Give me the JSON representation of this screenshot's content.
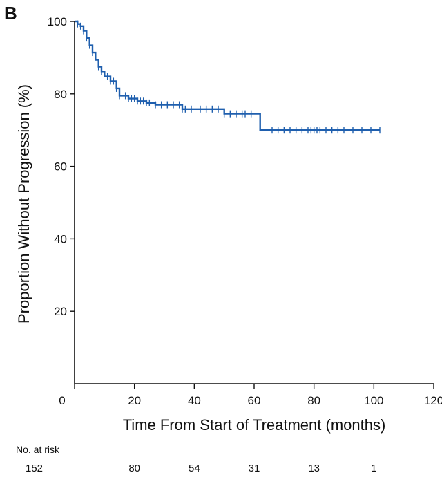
{
  "panel_label": "B",
  "colors": {
    "curve": "#1f5fae",
    "axis": "#111111"
  },
  "chart_data": {
    "type": "line",
    "subtype": "kaplan-meier",
    "xlabel": "Time From Start of Treatment (months)",
    "ylabel": "Proportion Without Progression (%)",
    "xlim": [
      0,
      120
    ],
    "ylim": [
      0,
      100
    ],
    "xticks": [
      0,
      20,
      40,
      60,
      80,
      100,
      120
    ],
    "yticks": [
      20,
      40,
      60,
      80,
      100
    ],
    "grid": false,
    "series": [
      {
        "steps": [
          [
            0,
            100
          ],
          [
            1,
            99.3
          ],
          [
            2,
            98.7
          ],
          [
            3,
            97.4
          ],
          [
            4,
            95.4
          ],
          [
            5,
            93.4
          ],
          [
            6,
            91.4
          ],
          [
            7,
            89.4
          ],
          [
            8,
            87.5
          ],
          [
            9,
            86.2
          ],
          [
            10,
            84.8
          ],
          [
            12,
            83.5
          ],
          [
            14,
            81.5
          ],
          [
            15,
            79.5
          ],
          [
            18,
            78.7
          ],
          [
            21,
            78.0
          ],
          [
            24,
            77.5
          ],
          [
            27,
            77.0
          ],
          [
            36,
            75.8
          ],
          [
            50,
            74.5
          ],
          [
            62,
            70.0
          ],
          [
            102,
            70.0
          ]
        ],
        "censored": [
          [
            1,
            99.3
          ],
          [
            2,
            98.7
          ],
          [
            3,
            97.4
          ],
          [
            4,
            95.4
          ],
          [
            5,
            93.4
          ],
          [
            6,
            91.4
          ],
          [
            8,
            87.5
          ],
          [
            9,
            86.2
          ],
          [
            11,
            84.8
          ],
          [
            12,
            83.5
          ],
          [
            13,
            83.5
          ],
          [
            14,
            81.5
          ],
          [
            15,
            79.5
          ],
          [
            17,
            79.5
          ],
          [
            18,
            78.7
          ],
          [
            19,
            78.7
          ],
          [
            20,
            78.7
          ],
          [
            21,
            78.0
          ],
          [
            22,
            78.0
          ],
          [
            23,
            78.0
          ],
          [
            24,
            77.5
          ],
          [
            25,
            77.5
          ],
          [
            27,
            77.0
          ],
          [
            29,
            77.0
          ],
          [
            31,
            77.0
          ],
          [
            33,
            77.0
          ],
          [
            35,
            77.0
          ],
          [
            36,
            75.8
          ],
          [
            37,
            75.8
          ],
          [
            39,
            75.8
          ],
          [
            42,
            75.8
          ],
          [
            44,
            75.8
          ],
          [
            46,
            75.8
          ],
          [
            48,
            75.8
          ],
          [
            50,
            74.5
          ],
          [
            52,
            74.5
          ],
          [
            54,
            74.5
          ],
          [
            56,
            74.5
          ],
          [
            57,
            74.5
          ],
          [
            59,
            74.5
          ],
          [
            66,
            70.0
          ],
          [
            68,
            70.0
          ],
          [
            70,
            70.0
          ],
          [
            72,
            70.0
          ],
          [
            74,
            70.0
          ],
          [
            76,
            70.0
          ],
          [
            78,
            70.0
          ],
          [
            79,
            70.0
          ],
          [
            80,
            70.0
          ],
          [
            81,
            70.0
          ],
          [
            82,
            70.0
          ],
          [
            84,
            70.0
          ],
          [
            86,
            70.0
          ],
          [
            88,
            70.0
          ],
          [
            90,
            70.0
          ],
          [
            93,
            70.0
          ],
          [
            96,
            70.0
          ],
          [
            99,
            70.0
          ],
          [
            102,
            70.0
          ]
        ]
      }
    ],
    "at_risk": {
      "title": "No. at risk",
      "values": [
        152,
        80,
        54,
        31,
        13,
        1
      ]
    }
  }
}
